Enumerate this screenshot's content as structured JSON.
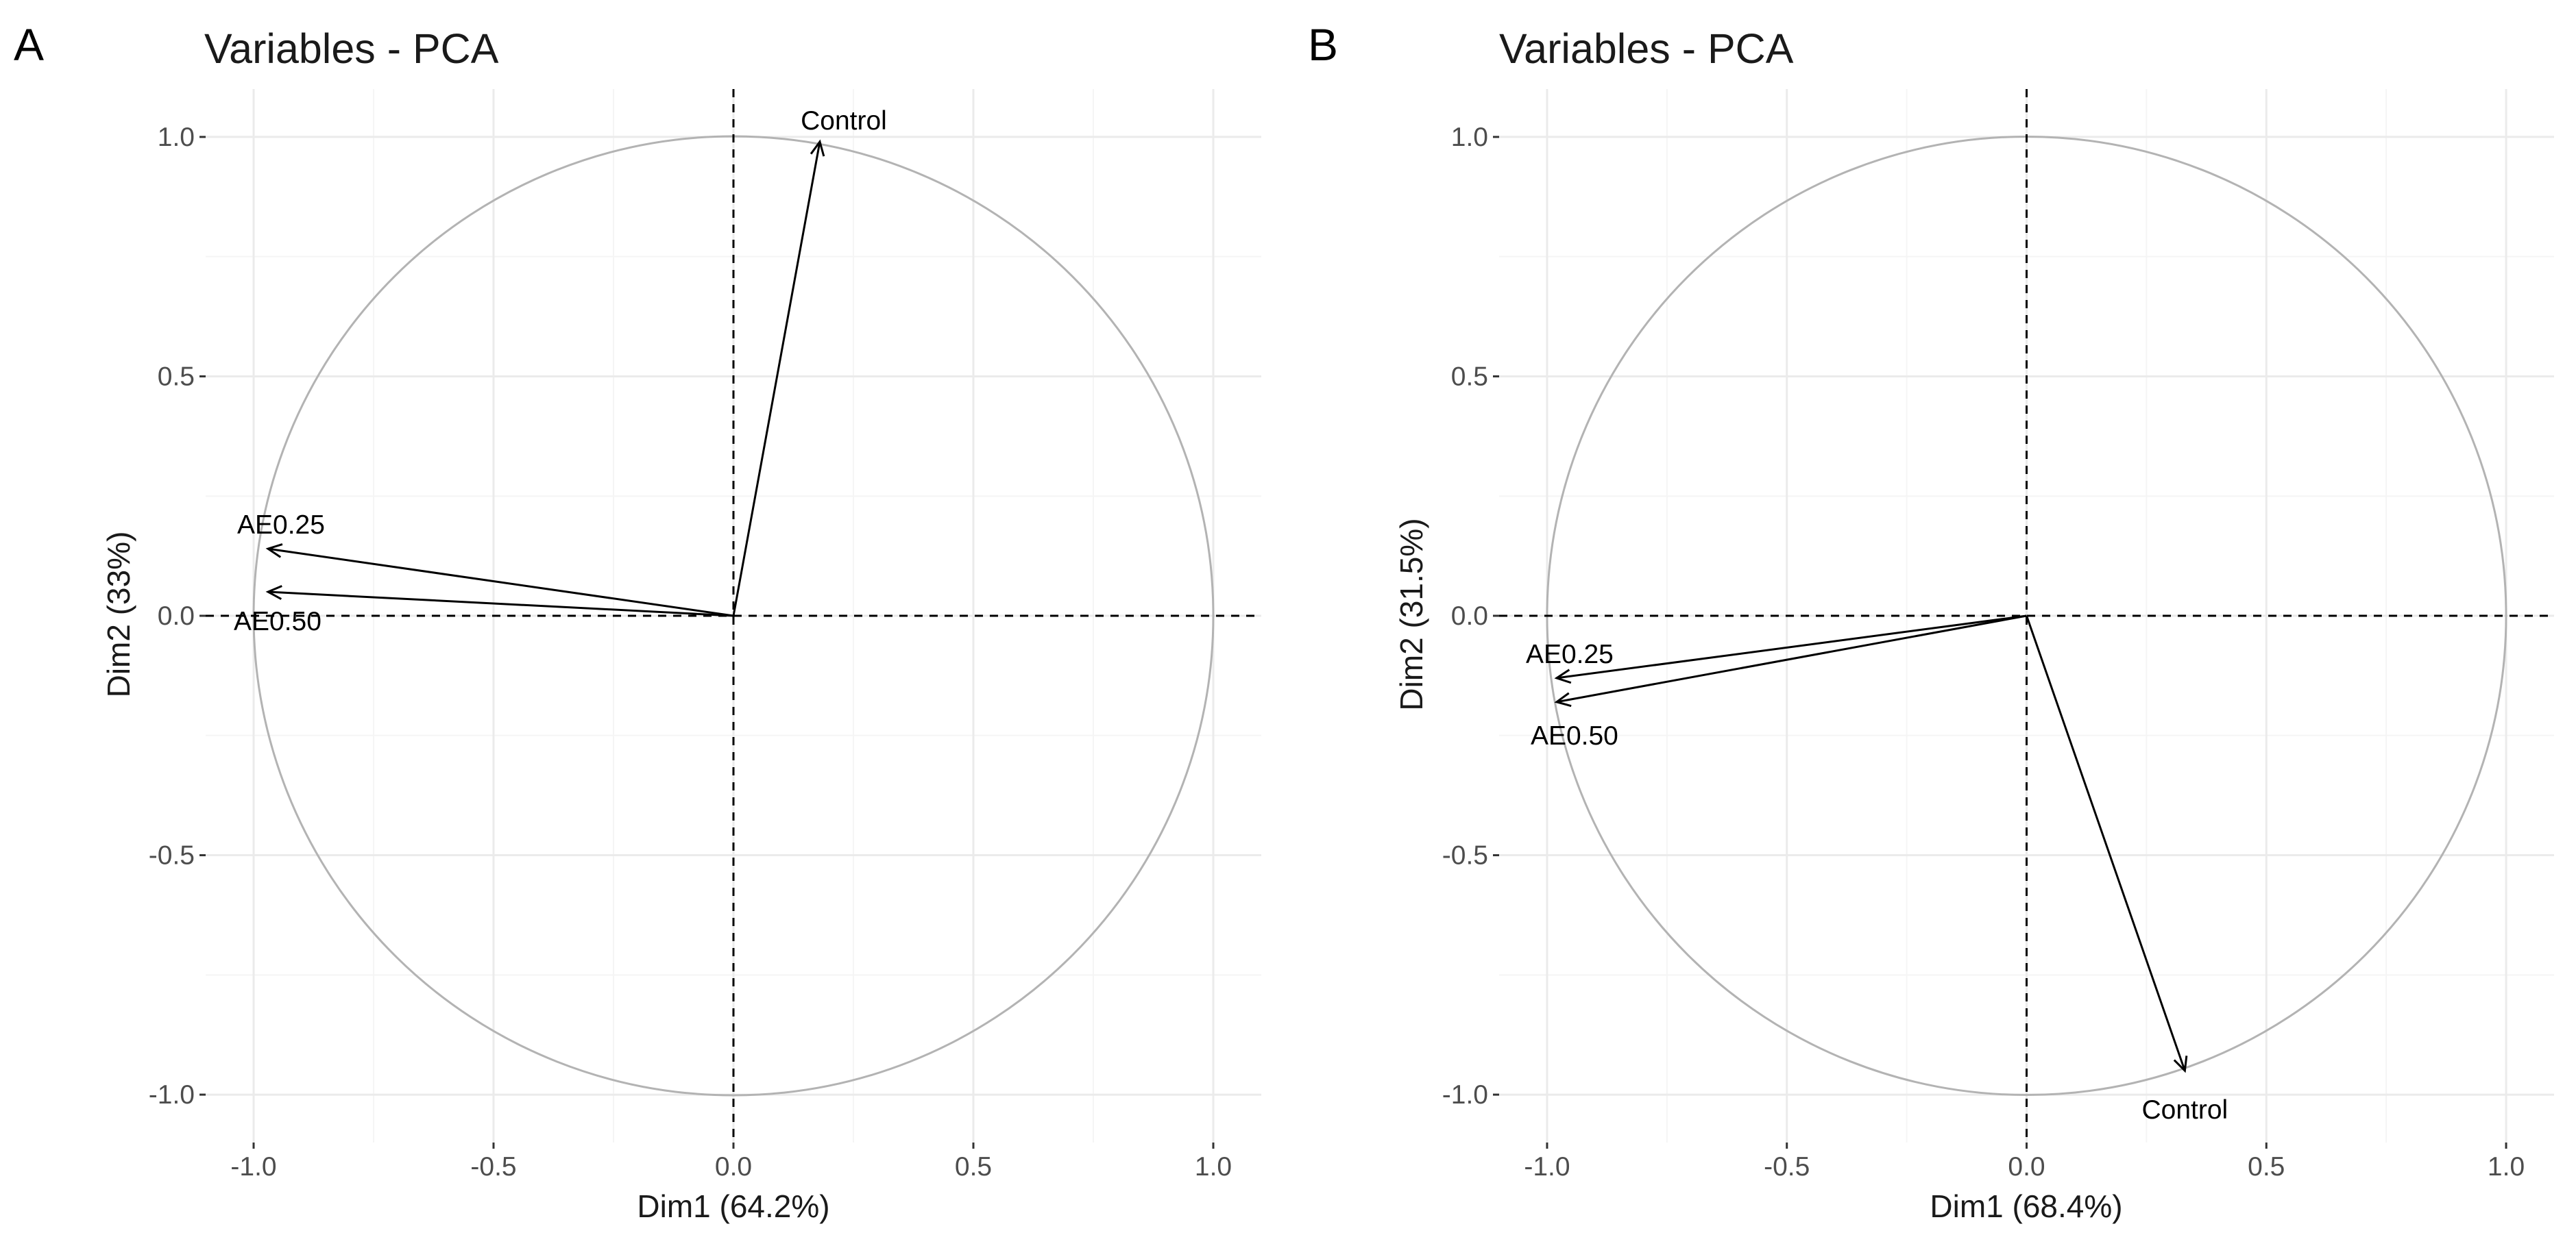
{
  "colors": {
    "background": "#ffffff",
    "grid_major": "#ebebeb",
    "grid_minor": "#f5f5f5",
    "circle": "#b3b3b3",
    "arrow": "#000000",
    "reference_line": "#000000",
    "tick_label": "#4d4d4d",
    "title": "#1a1a1a"
  },
  "chart_data": [
    {
      "type": "scatter",
      "subtype": "pca-correlation-circle",
      "panel": "A",
      "title": "Variables - PCA",
      "xlabel": "Dim1 (64.2%)",
      "ylabel": "Dim2 (33%)",
      "xlim": [
        -1.1,
        1.1
      ],
      "ylim": [
        -1.1,
        1.1
      ],
      "x_ticks": [
        -1.0,
        -0.5,
        0.0,
        0.5,
        1.0
      ],
      "y_ticks": [
        -1.0,
        -0.5,
        0.0,
        0.5,
        1.0
      ],
      "x_tick_labels": [
        "-1.0",
        "-0.5",
        "0.0",
        "0.5",
        "1.0"
      ],
      "y_tick_labels": [
        "-1.0",
        "-0.5",
        "0.0",
        "0.5",
        "1.0"
      ],
      "grid": true,
      "reference_lines": {
        "x": 0,
        "y": 0,
        "style": "dashed"
      },
      "unit_circle": true,
      "variables": [
        {
          "name": "Control",
          "x": 0.18,
          "y": 0.99
        },
        {
          "name": "AE0.25",
          "x": -0.97,
          "y": 0.14
        },
        {
          "name": "AE0.50",
          "x": -0.97,
          "y": 0.05
        }
      ]
    },
    {
      "type": "scatter",
      "subtype": "pca-correlation-circle",
      "panel": "B",
      "title": "Variables - PCA",
      "xlabel": "Dim1 (68.4%)",
      "ylabel": "Dim2 (31.5%)",
      "xlim": [
        -1.1,
        1.1
      ],
      "ylim": [
        -1.1,
        1.1
      ],
      "x_ticks": [
        -1.0,
        -0.5,
        0.0,
        0.5,
        1.0
      ],
      "y_ticks": [
        -1.0,
        -0.5,
        0.0,
        0.5,
        1.0
      ],
      "x_tick_labels": [
        "-1.0",
        "-0.5",
        "0.0",
        "0.5",
        "1.0"
      ],
      "y_tick_labels": [
        "-1.0",
        "-0.5",
        "0.0",
        "0.5",
        "1.0"
      ],
      "grid": true,
      "reference_lines": {
        "x": 0,
        "y": 0,
        "style": "dashed"
      },
      "unit_circle": true,
      "variables": [
        {
          "name": "AE0.25",
          "x": -0.98,
          "y": -0.13
        },
        {
          "name": "AE0.50",
          "x": -0.98,
          "y": -0.18
        },
        {
          "name": "Control",
          "x": 0.33,
          "y": -0.95
        }
      ]
    }
  ]
}
